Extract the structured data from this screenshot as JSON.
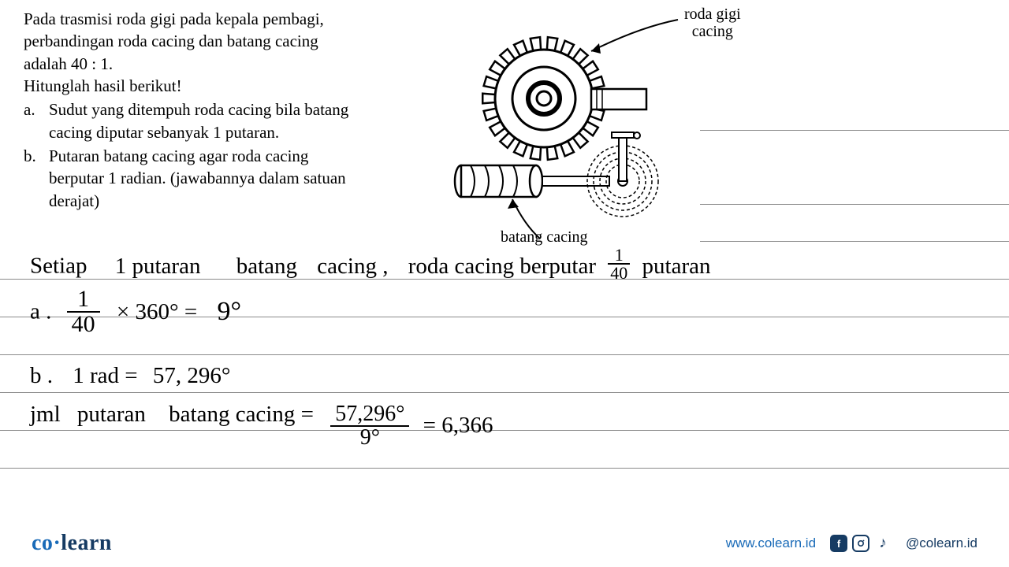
{
  "question": {
    "intro1": "Pada trasmisi roda gigi pada kepala pembagi,",
    "intro2": "perbandingan roda cacing dan batang cacing",
    "intro3": "adalah 40 : 1.",
    "instruct": "Hitunglah hasil berikut!",
    "item_a_marker": "a.",
    "item_a_l1": "Sudut yang ditempuh roda cacing bila batang",
    "item_a_l2": "cacing diputar sebanyak 1 putaran.",
    "item_b_marker": "b.",
    "item_b_l1": "Putaran batang cacing agar roda cacing",
    "item_b_l2": "berputar 1 radian. (jawabannya dalam satuan",
    "item_b_l3": "derajat)"
  },
  "diagram": {
    "label_top1": "roda gigi",
    "label_top2": "cacing",
    "label_bottom": "batang cacing",
    "stroke": "#000000",
    "fill": "#ffffff"
  },
  "handwriting": {
    "line1_a": "Setiap",
    "line1_b": "1 putaran",
    "line1_c": "batang",
    "line1_d": "cacing ,",
    "line1_e": "roda cacing berputar",
    "line1_f": "putaran",
    "frac1_num": "1",
    "frac1_den": "40",
    "line2_a": "a .",
    "line2_frac_num": "1",
    "line2_frac_den": "40",
    "line2_b": "× 360° =",
    "line2_c": "9°",
    "line3_a": "b .",
    "line3_b": "1 rad =",
    "line3_c": "57, 296°",
    "line4_a": "jml",
    "line4_b": "putaran",
    "line4_c": "batang cacing =",
    "line4_frac_num": "57,296°",
    "line4_frac_den": "9°",
    "line4_d": "= 6,366"
  },
  "footer": {
    "logo_co": "co",
    "logo_learn": "learn",
    "url": "www.colearn.id",
    "handle": "@colearn.id",
    "color_co": "#1a6bb8",
    "color_learn": "#163b63",
    "color_url": "#1a6bb8",
    "color_icons": "#163b63"
  },
  "style": {
    "background": "#ffffff",
    "text_color": "#000000",
    "ruled_color": "#8a8a8a",
    "hw_color": "#000000"
  }
}
